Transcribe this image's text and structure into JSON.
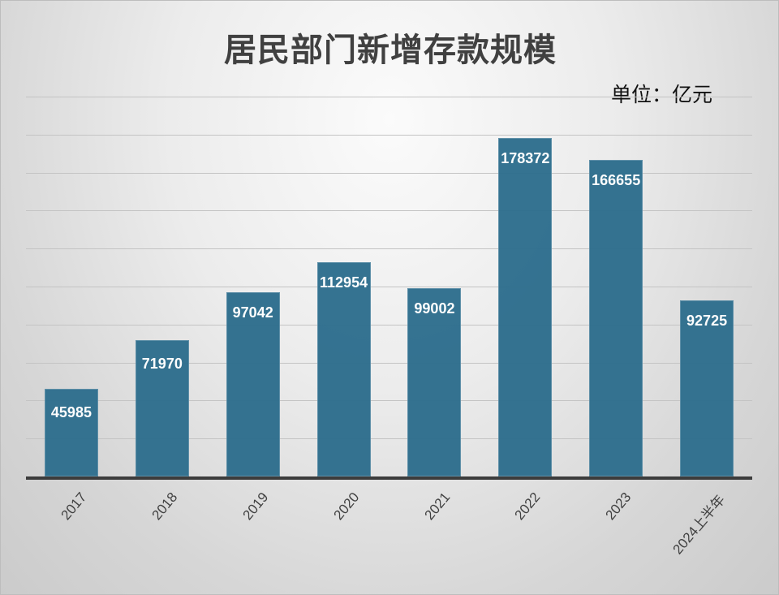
{
  "title": "居民部门新增存款规模",
  "unit": "单位：亿元",
  "colors": {
    "bar": "#2f6f8e",
    "label": "#ffffff",
    "axis": "#3c3c3c"
  },
  "chart_data": {
    "type": "bar",
    "title": "居民部门新增存款规模",
    "subtitle": "单位：亿元",
    "xlabel": "",
    "ylabel": "亿元",
    "categories": [
      "2017",
      "2018",
      "2019",
      "2020",
      "2021",
      "2022",
      "2023",
      "2024上半年"
    ],
    "values": [
      45985,
      71970,
      97042,
      112954,
      99002,
      178372,
      166655,
      92725
    ],
    "ylim": [
      0,
      200000
    ],
    "grid": true,
    "gridline_interval": 20000,
    "y_tick_labels_shown": false,
    "data_labels": true,
    "legend": "none"
  }
}
